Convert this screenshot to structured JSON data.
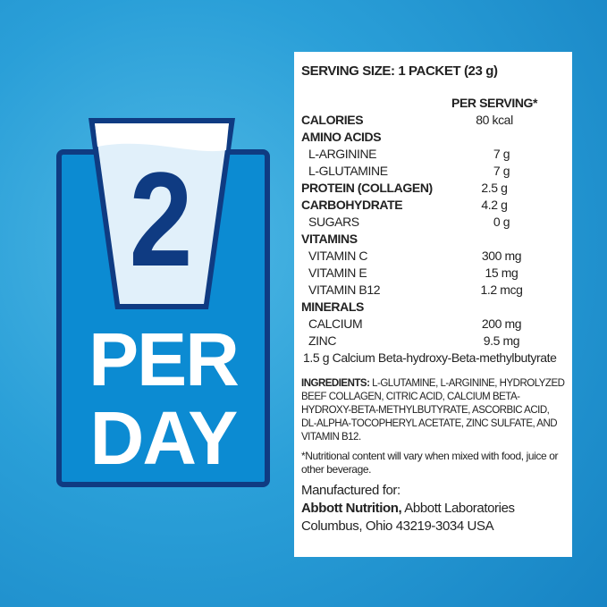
{
  "badge": {
    "number": "2",
    "line1": "PER",
    "line2": "DAY"
  },
  "colors": {
    "badge_fill": "#0c8bd2",
    "badge_border": "#0f3b82",
    "background": "#2a9fd8"
  },
  "panel": {
    "serving_size": "SERVING SIZE: 1 PACKET (23 g)",
    "per_serving_header": "PER SERVING*",
    "rows": [
      {
        "label": "CALORIES",
        "value": "80 kcal",
        "bold": true
      },
      {
        "label": "AMINO ACIDS",
        "value": "",
        "bold": true
      },
      {
        "label": "L-ARGININE",
        "value": "7 g"
      },
      {
        "label": "L-GLUTAMINE",
        "value": "7 g"
      },
      {
        "label": "PROTEIN (COLLAGEN)",
        "value": "2.5 g",
        "bold": true
      },
      {
        "label": "CARBOHYDRATE",
        "value": "4.2 g",
        "bold": true
      },
      {
        "label": "SUGARS",
        "value": "0 g"
      },
      {
        "label": "VITAMINS",
        "value": "",
        "bold": true
      },
      {
        "label": "VITAMIN C",
        "value": "300 mg"
      },
      {
        "label": "VITAMIN E",
        "value": "15 mg"
      },
      {
        "label": "VITAMIN B12",
        "value": "1.2 mcg"
      },
      {
        "label": "MINERALS",
        "value": "",
        "bold": true
      },
      {
        "label": "CALCIUM",
        "value": "200 mg"
      },
      {
        "label": "ZINC",
        "value": "9.5 mg"
      }
    ],
    "hmb_note": "1.5 g Calcium Beta-hydroxy-Beta-methylbutyrate",
    "ingredients_label": "INGREDIENTS:",
    "ingredients": "L-GLUTAMINE, L-ARGININE, HYDROLYZED BEEF COLLAGEN, CITRIC ACID, CALCIUM BETA-HYDROXY-BETA-METHYLBUTYRATE, ASCORBIC ACID, DL-ALPHA-TOCOPHERYL ACETATE, ZINC SULFATE, AND VITAMIN B12.",
    "footnote": "*Nutritional content will vary when mixed with food, juice or other beverage.",
    "manufactured_for": "Manufactured for:",
    "company_bold": "Abbott Nutrition,",
    "company": "Abbott Laboratories",
    "address": "Columbus, Ohio 43219-3034 USA"
  }
}
